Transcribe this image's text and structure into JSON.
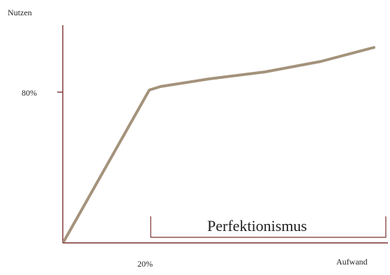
{
  "diagram": {
    "y_axis_label": "Nutzen",
    "x_axis_label": "Aufwand",
    "y_tick_label": "80%",
    "x_tick_label": "20%",
    "bracket_label": "Perfektionismus",
    "colors": {
      "axis": "#7a2e2e",
      "curve": "#a4927b",
      "text": "#1f1f1f"
    }
  }
}
